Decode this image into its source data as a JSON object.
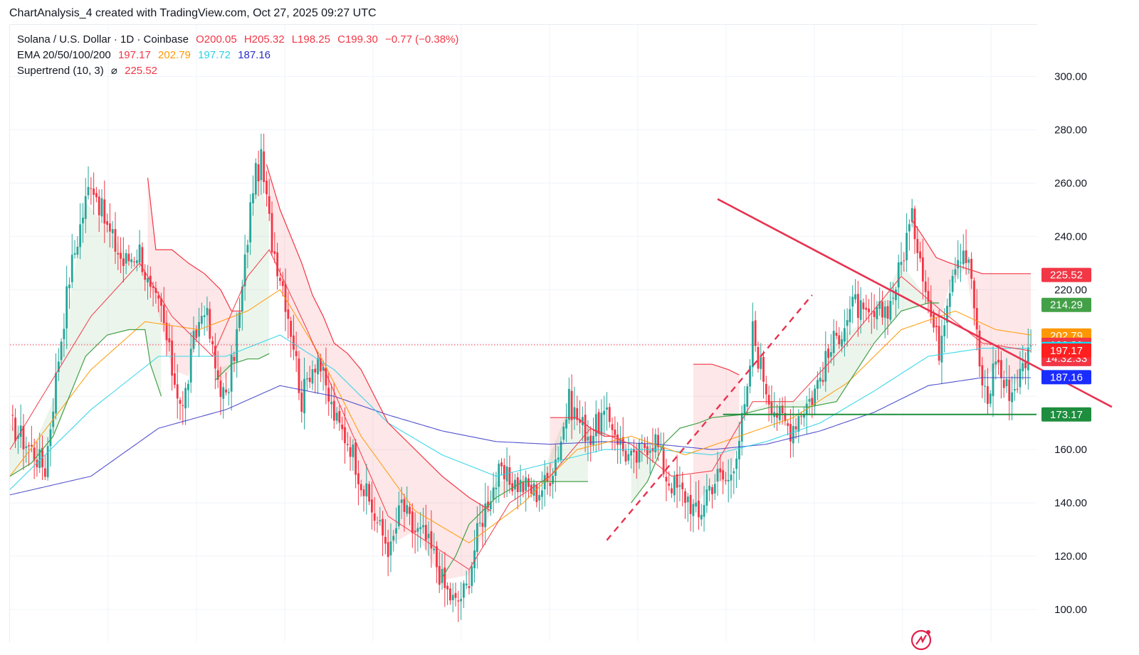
{
  "header": {
    "title": "ChartAnalysis_4 created with TradingView.com, Oct 27, 2025 09:27 UTC"
  },
  "legend": {
    "symbol": "Solana / U.S. Dollar · 1D · Coinbase",
    "open": "O200.05",
    "high": "H205.32",
    "low": "L198.25",
    "close": "C199.30",
    "change": "−0.77 (−0.38%)",
    "ema_label": "EMA 20/50/100/200",
    "ema20": "197.17",
    "ema50": "202.79",
    "ema100": "197.72",
    "ema200": "187.16",
    "supertrend_label": "Supertrend (10, 3)",
    "supertrend_symbol": "⌀",
    "supertrend_value": "225.52"
  },
  "colors": {
    "up": "#26a69a",
    "down": "#f23645",
    "ema20": "#f23645",
    "ema50": "#ff9800",
    "ema100": "#29d3e8",
    "ema200": "#3f3fc8",
    "supertrend_up": "#43a047",
    "supertrend_down": "#f23645",
    "support": "#1e8e3e"
  },
  "chart_data": {
    "type": "candlestick",
    "symbol": "Solana / U.S. Dollar",
    "interval": "1D",
    "exchange": "Coinbase",
    "ylim": [
      90,
      312
    ],
    "yticks": [
      100,
      120,
      140,
      160,
      180,
      200,
      220,
      240,
      260,
      280,
      300
    ],
    "ytick_labels": [
      "100.00",
      "120.00",
      "140.00",
      "160.00",
      "",
      "",
      "220.00",
      "240.00",
      "260.00",
      "280.00",
      "300.00"
    ],
    "current_price": 199.3,
    "countdown": "14:32:33",
    "price_tags": [
      {
        "value": 225.52,
        "label": "225.52",
        "color": "#f23645"
      },
      {
        "value": 214.29,
        "label": "214.29",
        "color": "#43a047"
      },
      {
        "value": 202.79,
        "label": "202.79",
        "color": "#ff9800"
      },
      {
        "value": 199.3,
        "label": "199.30",
        "color": "#f23645"
      },
      {
        "value": 197.72,
        "label": "197.72",
        "color": "#00e5ff"
      },
      {
        "value": 197.17,
        "label": "197.17",
        "color": "#ff1f1f"
      },
      {
        "value": 187.16,
        "label": "187.16",
        "color": "#1a2cff"
      },
      {
        "value": 173.17,
        "label": "173.17",
        "color": "#1e8e3e"
      }
    ],
    "support_level": 173.17,
    "trendline_down": {
      "from": [
        262,
        254
      ],
      "to": [
        408,
        176
      ]
    },
    "trendline_up_dashed": {
      "from": [
        221,
        126
      ],
      "to": [
        297,
        218
      ]
    },
    "price_path": [
      [
        0,
        170
      ],
      [
        8,
        160
      ],
      [
        13,
        153
      ],
      [
        18,
        195
      ],
      [
        22,
        225
      ],
      [
        26,
        244
      ],
      [
        30,
        262
      ],
      [
        36,
        243
      ],
      [
        42,
        230
      ],
      [
        48,
        235
      ],
      [
        52,
        218
      ],
      [
        56,
        212
      ],
      [
        60,
        190
      ],
      [
        64,
        175
      ],
      [
        68,
        200
      ],
      [
        72,
        215
      ],
      [
        76,
        190
      ],
      [
        80,
        178
      ],
      [
        85,
        210
      ],
      [
        88,
        240
      ],
      [
        90,
        260
      ],
      [
        93,
        268
      ],
      [
        97,
        238
      ],
      [
        101,
        222
      ],
      [
        105,
        200
      ],
      [
        108,
        178
      ],
      [
        111,
        190
      ],
      [
        114,
        195
      ],
      [
        117,
        182
      ],
      [
        121,
        170
      ],
      [
        126,
        162
      ],
      [
        131,
        145
      ],
      [
        137,
        130
      ],
      [
        141,
        122
      ],
      [
        145,
        140
      ],
      [
        149,
        130
      ],
      [
        153,
        128
      ],
      [
        157,
        120
      ],
      [
        161,
        108
      ],
      [
        165,
        102
      ],
      [
        169,
        108
      ],
      [
        173,
        128
      ],
      [
        177,
        142
      ],
      [
        181,
        150
      ],
      [
        186,
        148
      ],
      [
        191,
        146
      ],
      [
        195,
        144
      ],
      [
        199,
        148
      ],
      [
        203,
        160
      ],
      [
        207,
        178
      ],
      [
        211,
        170
      ],
      [
        215,
        165
      ],
      [
        219,
        172
      ],
      [
        223,
        170
      ],
      [
        227,
        160
      ],
      [
        231,
        155
      ],
      [
        235,
        162
      ],
      [
        239,
        164
      ],
      [
        243,
        150
      ],
      [
        247,
        145
      ],
      [
        251,
        142
      ],
      [
        255,
        134
      ],
      [
        258,
        145
      ],
      [
        262,
        150
      ],
      [
        266,
        148
      ],
      [
        270,
        165
      ],
      [
        273,
        180
      ],
      [
        275,
        205
      ],
      [
        277,
        195
      ],
      [
        281,
        180
      ],
      [
        285,
        172
      ],
      [
        289,
        168
      ],
      [
        293,
        175
      ],
      [
        297,
        180
      ],
      [
        301,
        190
      ],
      [
        305,
        200
      ],
      [
        309,
        208
      ],
      [
        313,
        215
      ],
      [
        317,
        208
      ],
      [
        321,
        210
      ],
      [
        326,
        215
      ],
      [
        330,
        230
      ],
      [
        332,
        240
      ],
      [
        334,
        246
      ],
      [
        337,
        234
      ],
      [
        341,
        210
      ],
      [
        344,
        198
      ],
      [
        347,
        218
      ],
      [
        350,
        232
      ],
      [
        353,
        236
      ],
      [
        356,
        225
      ],
      [
        359,
        190
      ],
      [
        362,
        178
      ],
      [
        365,
        196
      ],
      [
        368,
        184
      ],
      [
        371,
        182
      ],
      [
        374,
        188
      ],
      [
        376,
        194
      ],
      [
        378,
        199
      ]
    ],
    "ema20": [
      [
        0,
        160
      ],
      [
        30,
        210
      ],
      [
        48,
        230
      ],
      [
        60,
        210
      ],
      [
        75,
        195
      ],
      [
        88,
        225
      ],
      [
        96,
        235
      ],
      [
        110,
        205
      ],
      [
        125,
        170
      ],
      [
        140,
        135
      ],
      [
        155,
        125
      ],
      [
        170,
        115
      ],
      [
        185,
        140
      ],
      [
        200,
        150
      ],
      [
        215,
        168
      ],
      [
        230,
        162
      ],
      [
        245,
        150
      ],
      [
        260,
        152
      ],
      [
        275,
        178
      ],
      [
        290,
        178
      ],
      [
        310,
        200
      ],
      [
        330,
        225
      ],
      [
        345,
        212
      ],
      [
        360,
        200
      ],
      [
        378,
        197
      ]
    ],
    "ema50": [
      [
        0,
        150
      ],
      [
        30,
        190
      ],
      [
        50,
        208
      ],
      [
        70,
        205
      ],
      [
        88,
        212
      ],
      [
        100,
        220
      ],
      [
        115,
        195
      ],
      [
        130,
        165
      ],
      [
        150,
        137
      ],
      [
        170,
        125
      ],
      [
        190,
        140
      ],
      [
        210,
        160
      ],
      [
        230,
        165
      ],
      [
        250,
        158
      ],
      [
        270,
        165
      ],
      [
        290,
        172
      ],
      [
        310,
        185
      ],
      [
        330,
        205
      ],
      [
        350,
        212
      ],
      [
        365,
        205
      ],
      [
        378,
        203
      ]
    ],
    "ema100": [
      [
        0,
        145
      ],
      [
        30,
        175
      ],
      [
        55,
        195
      ],
      [
        80,
        195
      ],
      [
        100,
        203
      ],
      [
        120,
        190
      ],
      [
        140,
        170
      ],
      [
        160,
        158
      ],
      [
        180,
        150
      ],
      [
        200,
        155
      ],
      [
        220,
        160
      ],
      [
        240,
        160
      ],
      [
        260,
        158
      ],
      [
        280,
        163
      ],
      [
        300,
        170
      ],
      [
        320,
        182
      ],
      [
        340,
        195
      ],
      [
        360,
        198
      ],
      [
        378,
        198
      ]
    ],
    "ema200": [
      [
        0,
        143
      ],
      [
        30,
        150
      ],
      [
        55,
        168
      ],
      [
        80,
        175
      ],
      [
        100,
        184
      ],
      [
        120,
        180
      ],
      [
        140,
        173
      ],
      [
        160,
        167
      ],
      [
        180,
        163
      ],
      [
        200,
        162
      ],
      [
        220,
        163
      ],
      [
        240,
        162
      ],
      [
        260,
        160
      ],
      [
        280,
        162
      ],
      [
        300,
        167
      ],
      [
        320,
        174
      ],
      [
        340,
        184
      ],
      [
        360,
        187
      ],
      [
        378,
        187
      ]
    ],
    "supertrend": [
      {
        "trend": "up",
        "points": [
          [
            0,
            150
          ],
          [
            8,
            155
          ],
          [
            16,
            165
          ],
          [
            28,
            195
          ],
          [
            36,
            203
          ],
          [
            44,
            205
          ],
          [
            50,
            205
          ],
          [
            52,
            192
          ],
          [
            56,
            180
          ]
        ]
      },
      {
        "trend": "down",
        "points": [
          [
            51,
            262
          ],
          [
            54,
            235
          ],
          [
            60,
            235
          ],
          [
            66,
            230
          ],
          [
            72,
            226
          ],
          [
            78,
            220
          ],
          [
            82,
            212
          ],
          [
            86,
            212
          ]
        ]
      },
      {
        "trend": "up",
        "points": [
          [
            76,
            186
          ],
          [
            82,
            192
          ],
          [
            88,
            194
          ],
          [
            92,
            194
          ],
          [
            96,
            196
          ]
        ]
      },
      {
        "trend": "down",
        "points": [
          [
            95,
            267
          ],
          [
            100,
            250
          ],
          [
            104,
            240
          ],
          [
            108,
            230
          ],
          [
            112,
            218
          ],
          [
            116,
            210
          ],
          [
            120,
            200
          ],
          [
            125,
            196
          ],
          [
            130,
            190
          ],
          [
            140,
            170
          ],
          [
            150,
            160
          ],
          [
            160,
            150
          ],
          [
            170,
            142
          ],
          [
            178,
            137
          ]
        ]
      },
      {
        "trend": "up",
        "points": [
          [
            160,
            112
          ],
          [
            165,
            120
          ],
          [
            170,
            132
          ],
          [
            175,
            137
          ],
          [
            180,
            142
          ],
          [
            185,
            145
          ],
          [
            190,
            148
          ],
          [
            196,
            148
          ],
          [
            206,
            148
          ],
          [
            214,
            148
          ]
        ]
      },
      {
        "trend": "down",
        "points": [
          [
            200,
            172
          ],
          [
            205,
            172
          ],
          [
            210,
            172
          ],
          [
            215,
            168
          ],
          [
            220,
            165
          ],
          [
            225,
            165
          ]
        ]
      },
      {
        "trend": "up",
        "points": [
          [
            230,
            140
          ],
          [
            236,
            148
          ],
          [
            242,
            162
          ],
          [
            248,
            168
          ],
          [
            255,
            170
          ],
          [
            260,
            172
          ],
          [
            270,
            173
          ],
          [
            282,
            176
          ],
          [
            296,
            176
          ],
          [
            306,
            178
          ],
          [
            320,
            200
          ],
          [
            330,
            212
          ],
          [
            340,
            215
          ],
          [
            344,
            215
          ]
        ]
      },
      {
        "trend": "down",
        "points": [
          [
            253,
            192
          ],
          [
            260,
            192
          ],
          [
            266,
            190
          ],
          [
            270,
            188
          ]
        ]
      },
      {
        "trend": "down",
        "points": [
          [
            334,
            246
          ],
          [
            338,
            240
          ],
          [
            343,
            232
          ],
          [
            348,
            230
          ],
          [
            354,
            228
          ],
          [
            360,
            226
          ],
          [
            366,
            226
          ],
          [
            372,
            226
          ],
          [
            378,
            226
          ]
        ]
      }
    ]
  }
}
